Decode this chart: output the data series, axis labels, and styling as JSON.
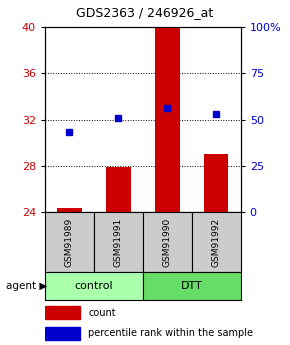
{
  "title": "GDS2363 / 246926_at",
  "samples": [
    "GSM91989",
    "GSM91991",
    "GSM91990",
    "GSM91992"
  ],
  "bar_values": [
    24.35,
    27.9,
    40.0,
    29.0
  ],
  "bar_base": 24.0,
  "dot_values": [
    30.9,
    32.1,
    33.0,
    32.5
  ],
  "ylim_left": [
    24,
    40
  ],
  "ylim_right": [
    0,
    100
  ],
  "yticks_left": [
    24,
    28,
    32,
    36,
    40
  ],
  "yticks_right": [
    0,
    25,
    50,
    75,
    100
  ],
  "ytick_labels_right": [
    "0",
    "25",
    "50",
    "75",
    "100%"
  ],
  "bar_color": "#cc0000",
  "dot_color": "#0000cc",
  "groups": [
    {
      "label": "control",
      "samples": [
        0,
        1
      ],
      "color": "#aaffaa"
    },
    {
      "label": "DTT",
      "samples": [
        2,
        3
      ],
      "color": "#66dd66"
    }
  ],
  "agent_label": "agent",
  "legend_count_label": "count",
  "legend_pct_label": "percentile rank within the sample",
  "bg_color": "#ffffff",
  "sample_box_color": "#cccccc"
}
